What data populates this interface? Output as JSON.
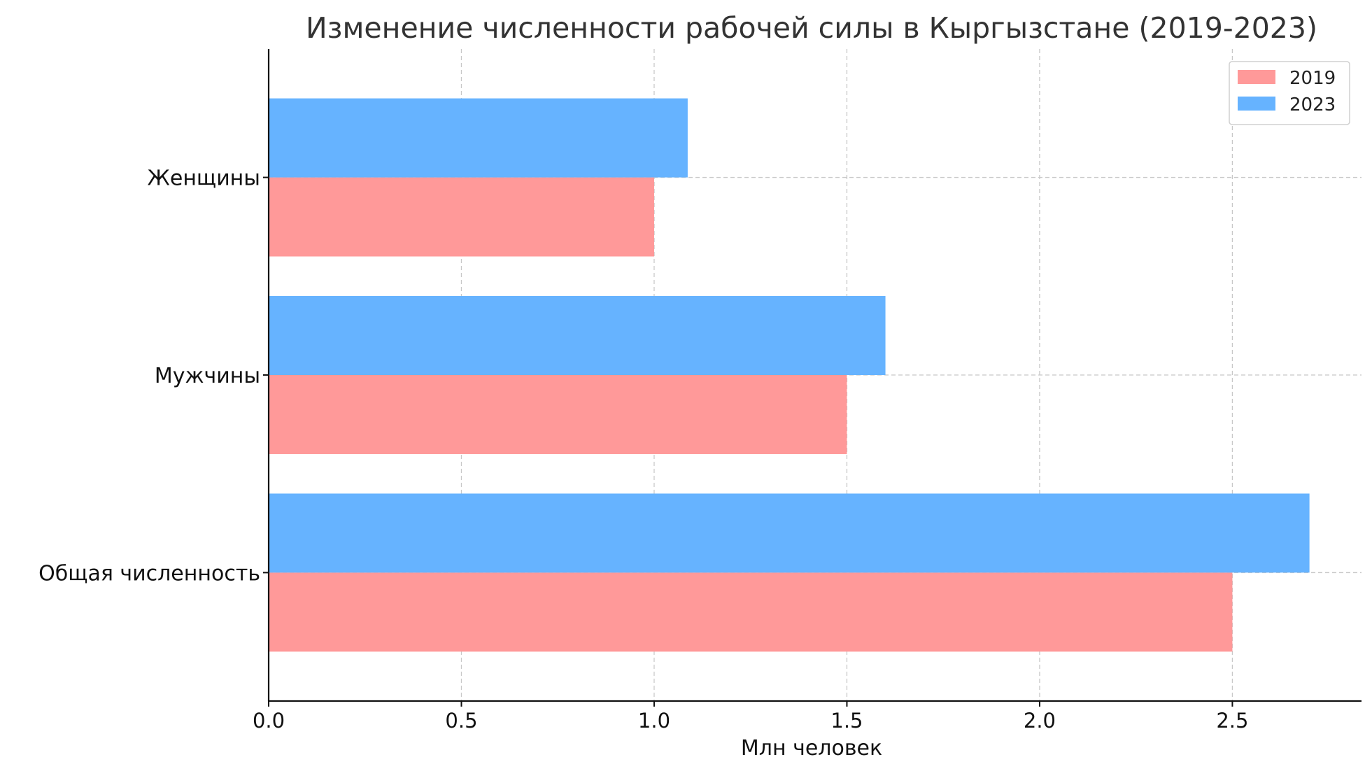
{
  "chart_data": {
    "type": "bar",
    "orientation": "horizontal",
    "title": "Изменение численности рабочей силы в Кыргызстане (2019-2023)",
    "xlabel": "Млн человек",
    "ylabel": "",
    "categories": [
      "Общая численность",
      "Мужчины",
      "Женщины"
    ],
    "series": [
      {
        "name": "2019",
        "values": [
          2.5,
          1.5,
          1.0
        ],
        "color": "#ff9999"
      },
      {
        "name": "2023",
        "values": [
          2.7,
          1.6,
          1.087
        ],
        "color": "#66b3ff"
      }
    ],
    "xlim": [
      0,
      2.835
    ],
    "xticks": [
      0.0,
      0.5,
      1.0,
      1.5,
      2.0,
      2.5
    ],
    "xtick_labels": [
      "0.0",
      "0.5",
      "1.0",
      "1.5",
      "2.0",
      "2.5"
    ],
    "grid": true,
    "legend": "top-right"
  }
}
